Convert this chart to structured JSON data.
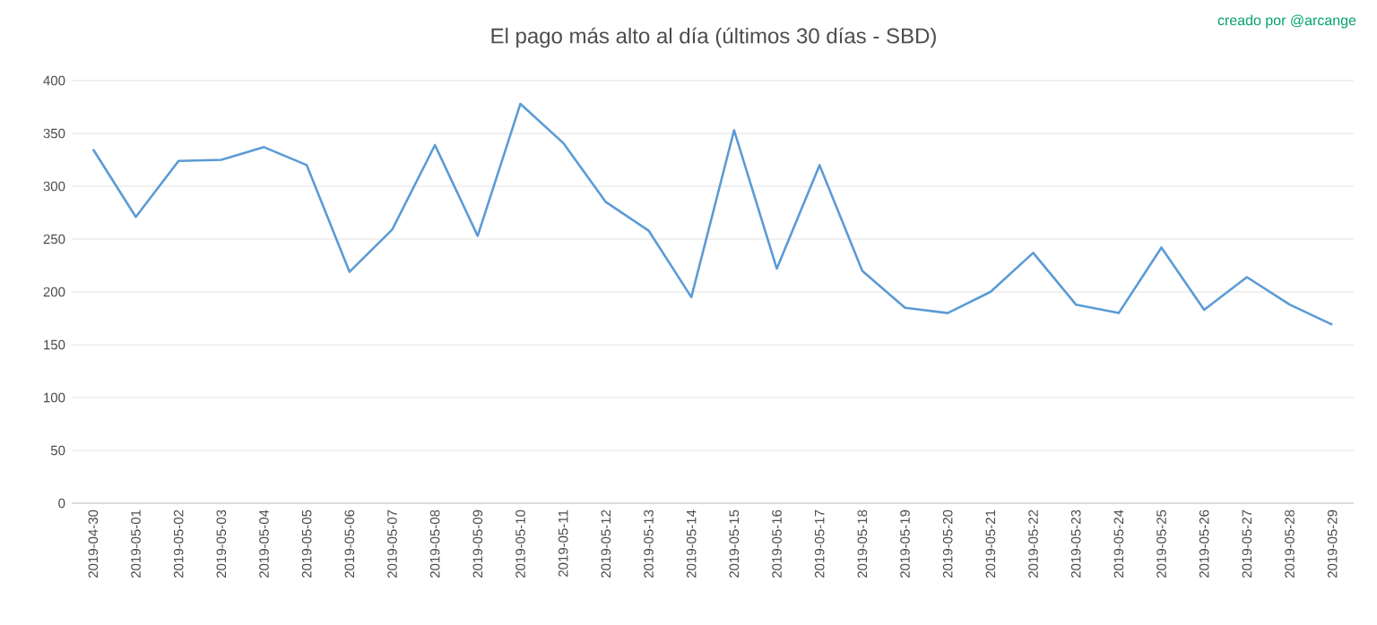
{
  "chart_data": {
    "type": "line",
    "title": "El pago más alto al día (últimos 30 días - SBD)",
    "annotations": [
      "creado por @arcange"
    ],
    "categories": [
      "2019-04-30",
      "2019-05-01",
      "2019-05-02",
      "2019-05-03",
      "2019-05-04",
      "2019-05-05",
      "2019-05-06",
      "2019-05-07",
      "2019-05-08",
      "2019-05-09",
      "2019-05-10",
      "2019-05-11",
      "2019-05-12",
      "2019-05-13",
      "2019-05-14",
      "2019-05-15",
      "2019-05-16",
      "2019-05-17",
      "2019-05-18",
      "2019-05-19",
      "2019-05-20",
      "2019-05-21",
      "2019-05-22",
      "2019-05-23",
      "2019-05-24",
      "2019-05-25",
      "2019-05-26",
      "2019-05-27",
      "2019-05-28",
      "2019-05-29"
    ],
    "values": [
      335,
      271,
      324,
      325,
      337,
      320,
      219,
      259,
      339,
      253,
      378,
      341,
      285,
      258,
      195,
      353,
      222,
      320,
      220,
      185,
      180,
      200,
      237,
      188,
      180,
      242,
      183,
      214,
      188,
      169
    ],
    "color": "#5b9bd5",
    "ylim": [
      0,
      400
    ],
    "yticks": [
      0,
      50,
      100,
      150,
      200,
      250,
      300,
      350,
      400
    ],
    "grid": "y",
    "marker": "none",
    "line_style": "solid"
  }
}
